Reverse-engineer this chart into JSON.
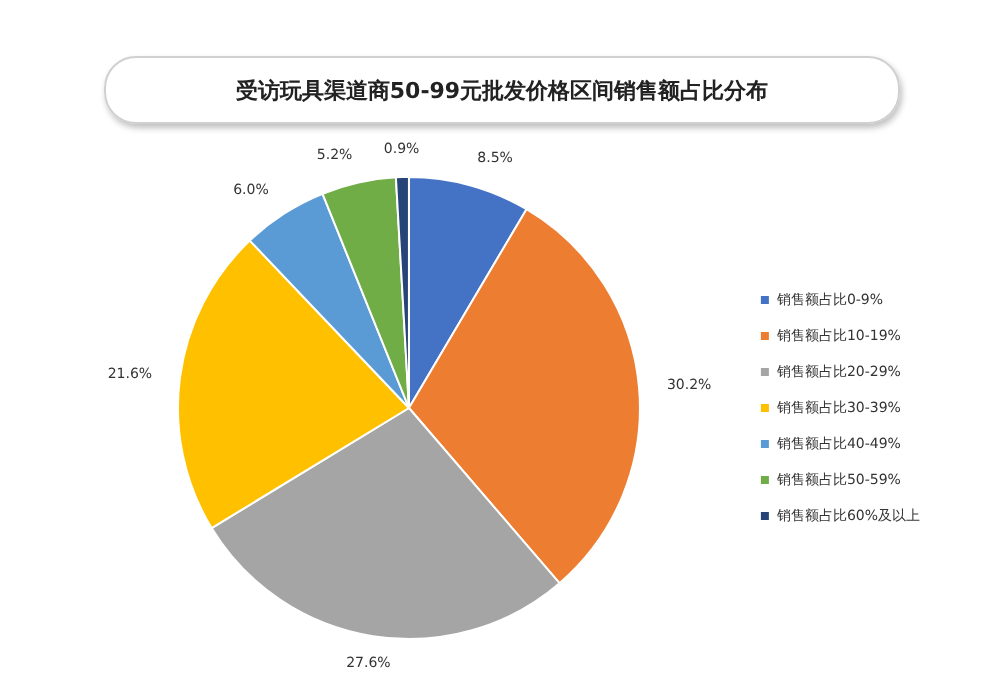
{
  "chart_data": {
    "type": "pie",
    "title": "受访玩具渠道商50-99元批发价格区间销售额占比分布",
    "categories": [
      "销售额占比0-9%",
      "销售额占比10-19%",
      "销售额占比20-29%",
      "销售额占比30-39%",
      "销售额占比40-49%",
      "销售额占比50-59%",
      "销售额占比60%及以上"
    ],
    "values": [
      8.5,
      30.2,
      27.6,
      21.6,
      6.0,
      5.2,
      0.9
    ],
    "value_labels": [
      "8.5%",
      "30.2%",
      "27.6%",
      "21.6%",
      "6.0%",
      "5.2%",
      "0.9%"
    ],
    "colors": [
      "#4472c4",
      "#ed7d31",
      "#a5a5a5",
      "#ffc000",
      "#5b9bd5",
      "#70ad47",
      "#264478"
    ],
    "legend": "right"
  }
}
